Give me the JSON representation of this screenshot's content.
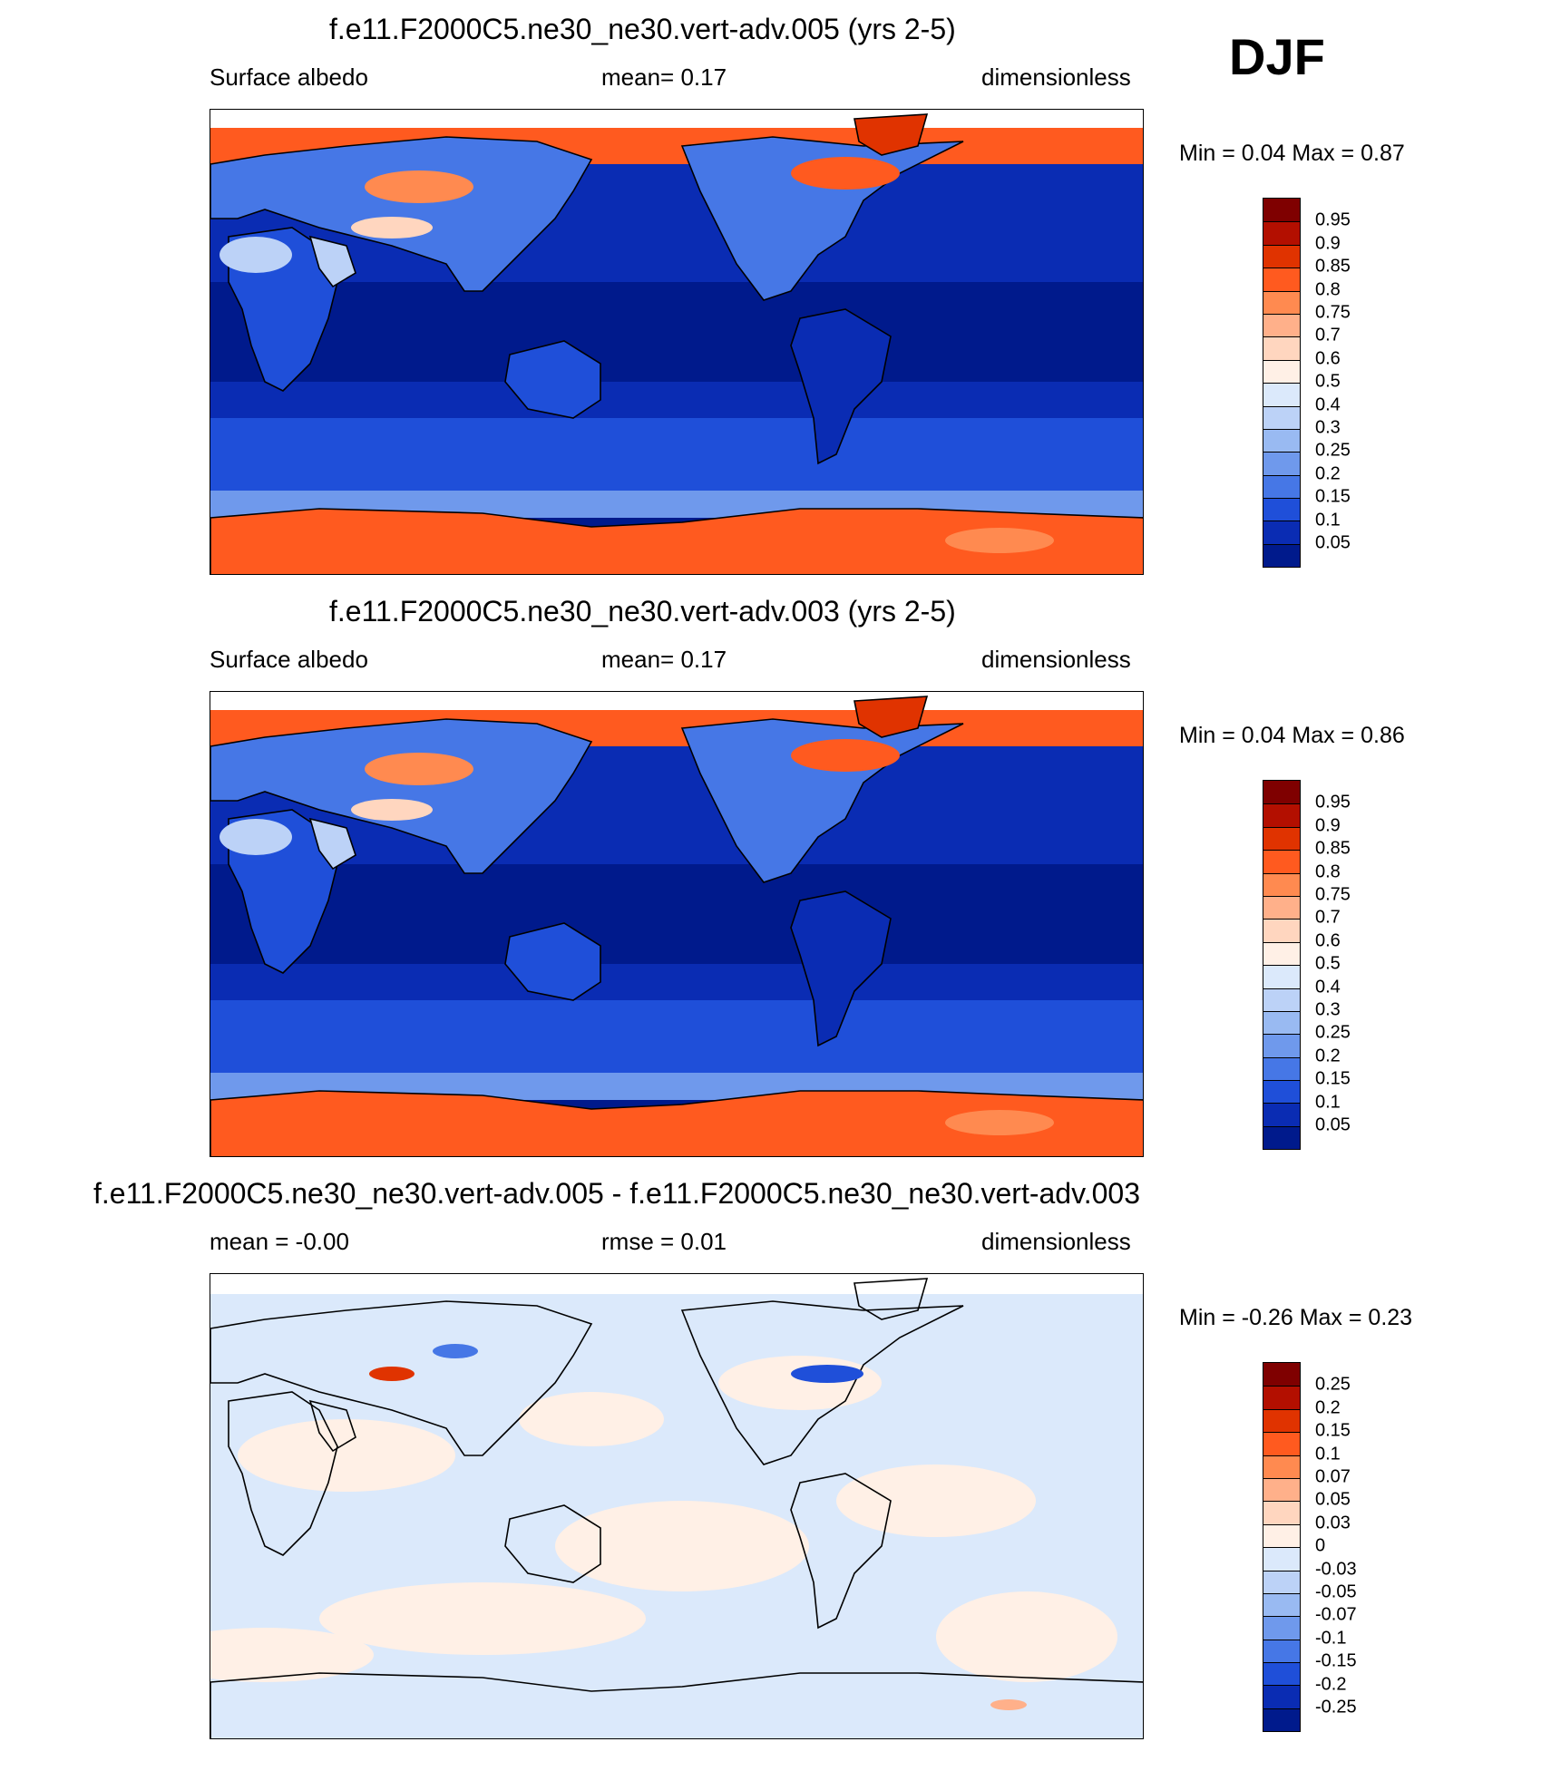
{
  "season": "DJF",
  "panels": [
    {
      "id": "case005",
      "title": "f.e11.F2000C5.ne30_ne30.vert-adv.005 (yrs 2-5)",
      "left_label": "Surface albedo",
      "center_label": "mean=   0.17",
      "right_label": "dimensionless",
      "stats": "Min =   0.04 Max =   0.87",
      "kind": "field"
    },
    {
      "id": "case003",
      "title": "f.e11.F2000C5.ne30_ne30.vert-adv.003 (yrs 2-5)",
      "left_label": "Surface albedo",
      "center_label": "mean=   0.17",
      "right_label": "dimensionless",
      "stats": "Min =   0.04 Max =   0.86",
      "kind": "field"
    },
    {
      "id": "diff",
      "title": "f.e11.F2000C5.ne30_ne30.vert-adv.005 - f.e11.F2000C5.ne30_ne30.vert-adv.003",
      "left_label": "mean =  -0.00",
      "center_label": "rmse =   0.01",
      "right_label": "dimensionless",
      "stats": "Min =  -0.26 Max =   0.23",
      "kind": "diff"
    }
  ],
  "colorbars": {
    "field": {
      "labels": [
        "0.95",
        "0.9",
        "0.85",
        "0.8",
        "0.75",
        "0.7",
        "0.6",
        "0.5",
        "0.4",
        "0.3",
        "0.25",
        "0.2",
        "0.15",
        "0.1",
        "0.05"
      ],
      "colors": [
        "#7f0000",
        "#b30f00",
        "#e03300",
        "#ff5a1f",
        "#ff8a50",
        "#ffb08a",
        "#ffd6bf",
        "#fff0e6",
        "#dbe9fb",
        "#bcd2f7",
        "#99baf2",
        "#6f99ec",
        "#4677e6",
        "#1f4fd9",
        "#0a2cb3",
        "#001a8c"
      ]
    },
    "diff": {
      "labels": [
        "0.25",
        "0.2",
        "0.15",
        "0.1",
        "0.07",
        "0.05",
        "0.03",
        "0",
        "-0.03",
        "-0.05",
        "-0.07",
        "-0.1",
        "-0.15",
        "-0.2",
        "-0.25"
      ],
      "colors": [
        "#7f0000",
        "#b30f00",
        "#e03300",
        "#ff5a1f",
        "#ff8a50",
        "#ffb08a",
        "#ffd6bf",
        "#fff0e6",
        "#dbe9fb",
        "#bcd2f7",
        "#99baf2",
        "#6f99ec",
        "#4677e6",
        "#1f4fd9",
        "#0a2cb3",
        "#001a8c"
      ]
    }
  }
}
